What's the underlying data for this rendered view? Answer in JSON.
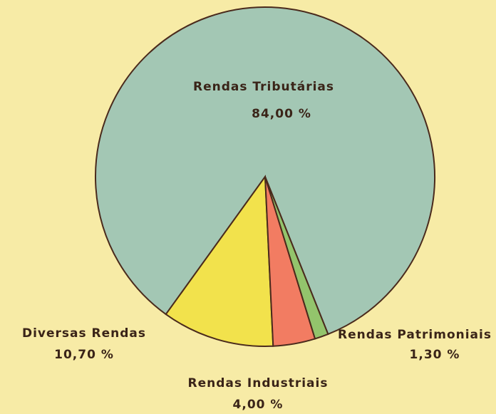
{
  "chart_data": {
    "type": "pie",
    "categories": [
      "Rendas Tributárias",
      "Diversas Rendas",
      "Rendas Industriais",
      "Rendas Patrimoniais"
    ],
    "values": [
      84,
      10.7,
      4,
      1.3
    ],
    "value_labels": [
      "84,00 %",
      "10,70 %",
      "4,00 %",
      "1,30 %"
    ],
    "colors": [
      "#a3c7b4",
      "#f2e24c",
      "#f27c62",
      "#93c46c"
    ]
  }
}
